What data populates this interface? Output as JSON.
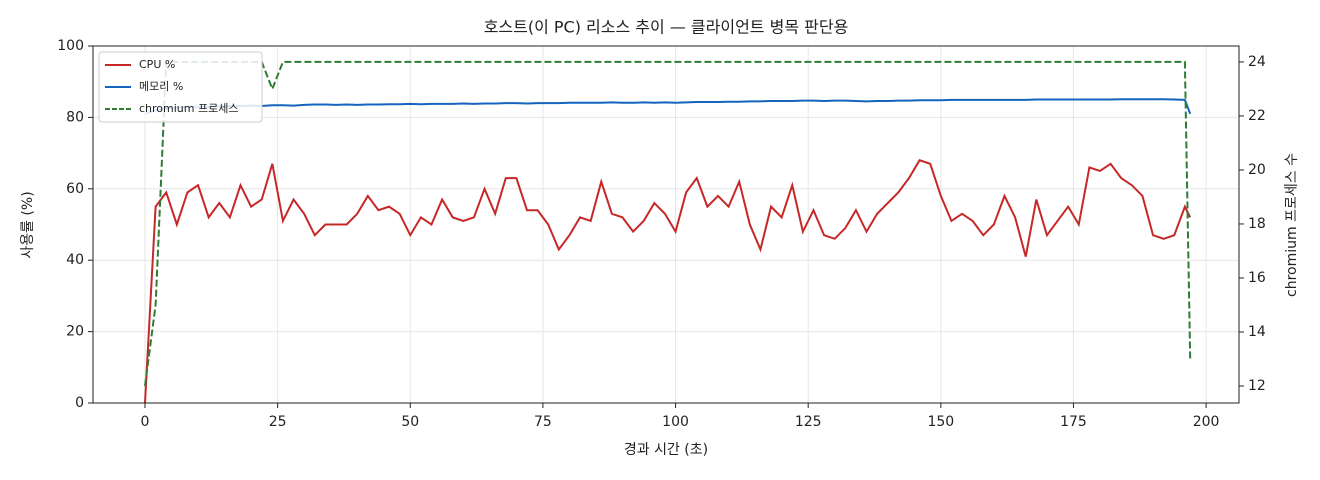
{
  "chart_data": {
    "type": "line",
    "title": "호스트(이 PC) 리소스 추이 — 클라이언트 병목 판단용",
    "xlabel": "경과 시간 (초)",
    "ylabel": "사용률 (%)",
    "y2label": "chromium 프로세스 수",
    "xlim": [
      -9.8,
      206.2
    ],
    "xticks": [
      0,
      25,
      50,
      75,
      100,
      125,
      150,
      175,
      200
    ],
    "ylim": [
      0,
      100
    ],
    "yticks": [
      0,
      20,
      40,
      60,
      80,
      100
    ],
    "y2lim": [
      11.37,
      24.59
    ],
    "y2ticks": [
      12,
      14,
      16,
      18,
      20,
      22,
      24
    ],
    "grid": true,
    "legend": "upper left",
    "x": [
      0,
      2,
      4,
      6,
      8,
      10,
      12,
      14,
      16,
      18,
      20,
      22,
      24,
      26,
      28,
      30,
      32,
      34,
      36,
      38,
      40,
      42,
      44,
      46,
      48,
      50,
      52,
      54,
      56,
      58,
      60,
      62,
      64,
      66,
      68,
      70,
      72,
      74,
      76,
      78,
      80,
      82,
      84,
      86,
      88,
      90,
      92,
      94,
      96,
      98,
      100,
      102,
      104,
      106,
      108,
      110,
      112,
      114,
      116,
      118,
      120,
      122,
      124,
      126,
      128,
      130,
      132,
      134,
      136,
      138,
      140,
      142,
      144,
      146,
      148,
      150,
      152,
      154,
      156,
      158,
      160,
      162,
      164,
      166,
      168,
      170,
      172,
      174,
      176,
      178,
      180,
      182,
      184,
      186,
      188,
      190,
      192,
      194,
      196,
      197
    ],
    "series": [
      {
        "name": "CPU %",
        "color": "#c62828",
        "linestyle": "solid",
        "values": [
          0,
          55,
          59,
          50,
          59,
          61,
          52,
          56,
          52,
          61,
          55,
          57,
          67,
          51,
          57,
          53,
          47,
          50,
          50,
          50,
          53,
          58,
          54,
          55,
          53,
          47,
          52,
          50,
          57,
          52,
          51,
          52,
          60,
          53,
          63,
          63,
          54,
          54,
          50,
          43,
          47,
          52,
          51,
          62,
          53,
          52,
          48,
          51,
          56,
          53,
          48,
          59,
          63,
          55,
          58,
          55,
          62,
          50,
          43,
          55,
          52,
          61,
          48,
          54,
          47,
          46,
          49,
          54,
          48,
          53,
          56,
          59,
          63,
          68,
          67,
          58,
          51,
          53,
          51,
          47,
          50,
          58,
          52,
          41,
          57,
          47,
          51,
          55,
          50,
          66,
          65,
          67,
          63,
          61,
          58,
          47,
          46,
          47,
          55,
          52
        ]
      },
      {
        "name": "메모리 %",
        "color": "#1565c0",
        "linestyle": "solid",
        "values": [
          81,
          82,
          82.5,
          82.8,
          83,
          83,
          83,
          83.1,
          83.2,
          83.2,
          83.3,
          83.2,
          83.4,
          83.4,
          83.3,
          83.5,
          83.6,
          83.6,
          83.5,
          83.6,
          83.5,
          83.6,
          83.6,
          83.7,
          83.7,
          83.8,
          83.7,
          83.8,
          83.8,
          83.8,
          83.9,
          83.8,
          83.9,
          83.9,
          84,
          84,
          83.9,
          84,
          84,
          84,
          84.1,
          84.1,
          84.1,
          84.1,
          84.2,
          84.1,
          84.1,
          84.2,
          84.1,
          84.2,
          84.1,
          84.2,
          84.3,
          84.3,
          84.3,
          84.4,
          84.4,
          84.5,
          84.5,
          84.6,
          84.6,
          84.6,
          84.7,
          84.7,
          84.6,
          84.7,
          84.7,
          84.6,
          84.5,
          84.6,
          84.6,
          84.7,
          84.7,
          84.8,
          84.8,
          84.8,
          84.9,
          84.9,
          84.9,
          84.9,
          84.9,
          84.9,
          84.9,
          84.9,
          85,
          85,
          85,
          85,
          85,
          85,
          85,
          85,
          85.1,
          85.1,
          85.1,
          85.1,
          85.1,
          85,
          84.9,
          81
        ]
      },
      {
        "name": "chromium 프로세스",
        "color": "#2e7d32",
        "linestyle": "dashed",
        "axis": "y2",
        "values": [
          12,
          15,
          24,
          24,
          24,
          24,
          24,
          24,
          24,
          24,
          24,
          24,
          23,
          24,
          24,
          24,
          24,
          24,
          24,
          24,
          24,
          24,
          24,
          24,
          24,
          24,
          24,
          24,
          24,
          24,
          24,
          24,
          24,
          24,
          24,
          24,
          24,
          24,
          24,
          24,
          24,
          24,
          24,
          24,
          24,
          24,
          24,
          24,
          24,
          24,
          24,
          24,
          24,
          24,
          24,
          24,
          24,
          24,
          24,
          24,
          24,
          24,
          24,
          24,
          24,
          24,
          24,
          24,
          24,
          24,
          24,
          24,
          24,
          24,
          24,
          24,
          24,
          24,
          24,
          24,
          24,
          24,
          24,
          24,
          24,
          24,
          24,
          24,
          24,
          24,
          24,
          24,
          24,
          24,
          24,
          24,
          24,
          24,
          24,
          13
        ]
      }
    ]
  }
}
